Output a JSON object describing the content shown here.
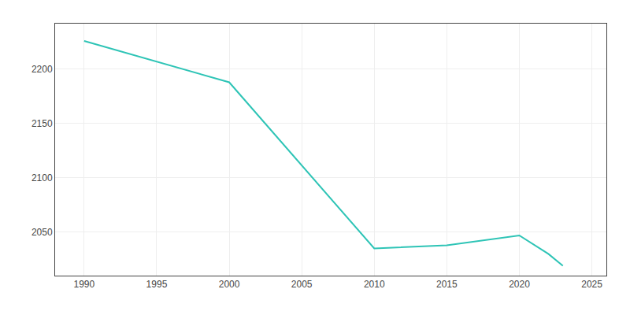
{
  "chart_data": {
    "type": "line",
    "x": [
      1990,
      2000,
      2010,
      2015,
      2020,
      2022,
      2023
    ],
    "values": [
      2226,
      2188,
      2035,
      2038,
      2047,
      2030,
      2019
    ],
    "color": "#2ec4b6",
    "xlim": [
      1988,
      2026
    ],
    "ylim": [
      2010,
      2242
    ],
    "xticks": [
      1990,
      1995,
      2000,
      2005,
      2010,
      2015,
      2020,
      2025
    ],
    "yticks": [
      2050,
      2100,
      2150,
      2200
    ],
    "grid": true
  }
}
